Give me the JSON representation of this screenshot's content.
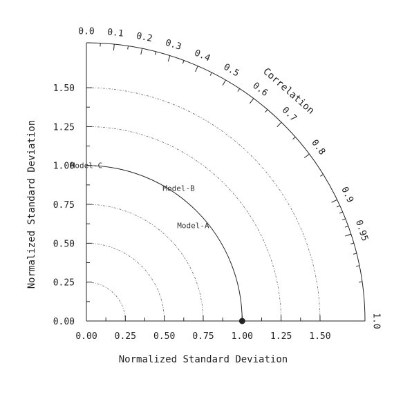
{
  "chart_data": {
    "type": "taylor",
    "xlabel": "Normalized Standard Deviation",
    "ylabel": "Normalized Standard Deviation",
    "correlation_label": "Correlation",
    "std_range": [
      0,
      1.5
    ],
    "std_ticks": [
      "0.00",
      "0.25",
      "0.50",
      "0.75",
      "1.00",
      "1.25",
      "1.50"
    ],
    "std_circles": [
      0.25,
      0.5,
      0.75,
      1.0,
      1.25,
      1.5
    ],
    "reference_std": 1.0,
    "correlation_ticks": [
      {
        "value": 0.0,
        "label": "0.0"
      },
      {
        "value": 0.1,
        "label": "0.1"
      },
      {
        "value": 0.2,
        "label": "0.2"
      },
      {
        "value": 0.3,
        "label": "0.3"
      },
      {
        "value": 0.4,
        "label": "0.4"
      },
      {
        "value": 0.5,
        "label": "0.5"
      },
      {
        "value": 0.6,
        "label": "0.6"
      },
      {
        "value": 0.7,
        "label": "0.7"
      },
      {
        "value": 0.8,
        "label": "0.8"
      },
      {
        "value": 0.9,
        "label": "0.9"
      },
      {
        "value": 0.95,
        "label": "0.95"
      },
      {
        "value": 1.0,
        "label": "1.0"
      }
    ],
    "models": [
      {
        "name": "Model-A",
        "std": 0.92,
        "correlation": 0.745
      },
      {
        "name": "Model-B",
        "std": 1.04,
        "correlation": 0.57
      },
      {
        "name": "Model-C",
        "std": 1.0,
        "correlation": 0.0
      }
    ]
  }
}
